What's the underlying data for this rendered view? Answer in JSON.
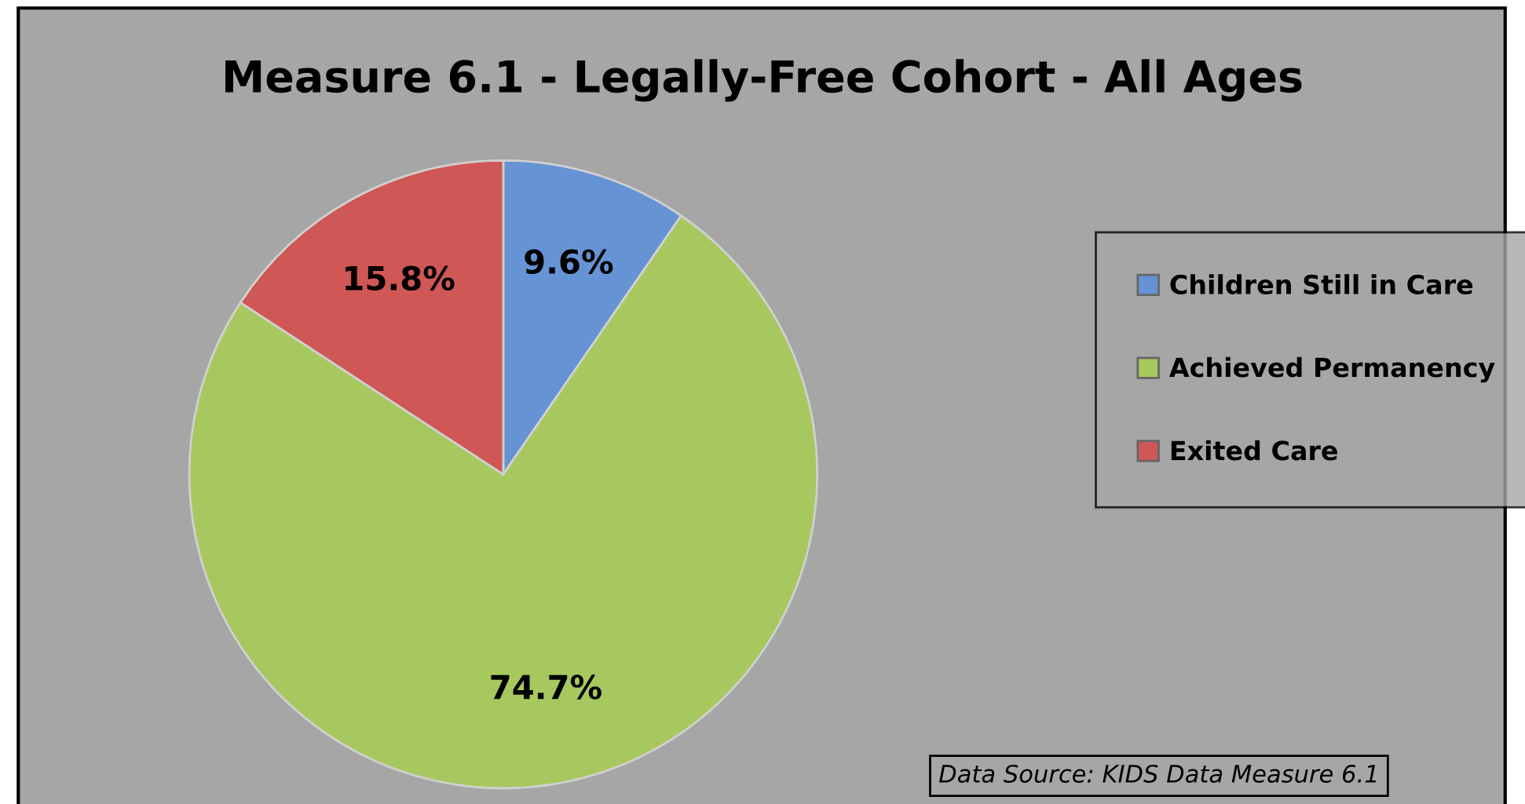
{
  "chart_data": {
    "type": "pie",
    "title": "Measure 6.1 - Legally-Free Cohort - All Ages",
    "categories": [
      "Children Still in Care",
      "Achieved Permanency",
      "Exited Care"
    ],
    "values": [
      9.6,
      74.7,
      15.8
    ],
    "colors": [
      "#6593d4",
      "#a7c85e",
      "#cf5755"
    ],
    "value_labels": [
      "9.6%",
      "74.7%",
      "15.8%"
    ],
    "legend": "right",
    "annotations": [
      "Data Source: KIDS Data Measure 6.1"
    ]
  }
}
